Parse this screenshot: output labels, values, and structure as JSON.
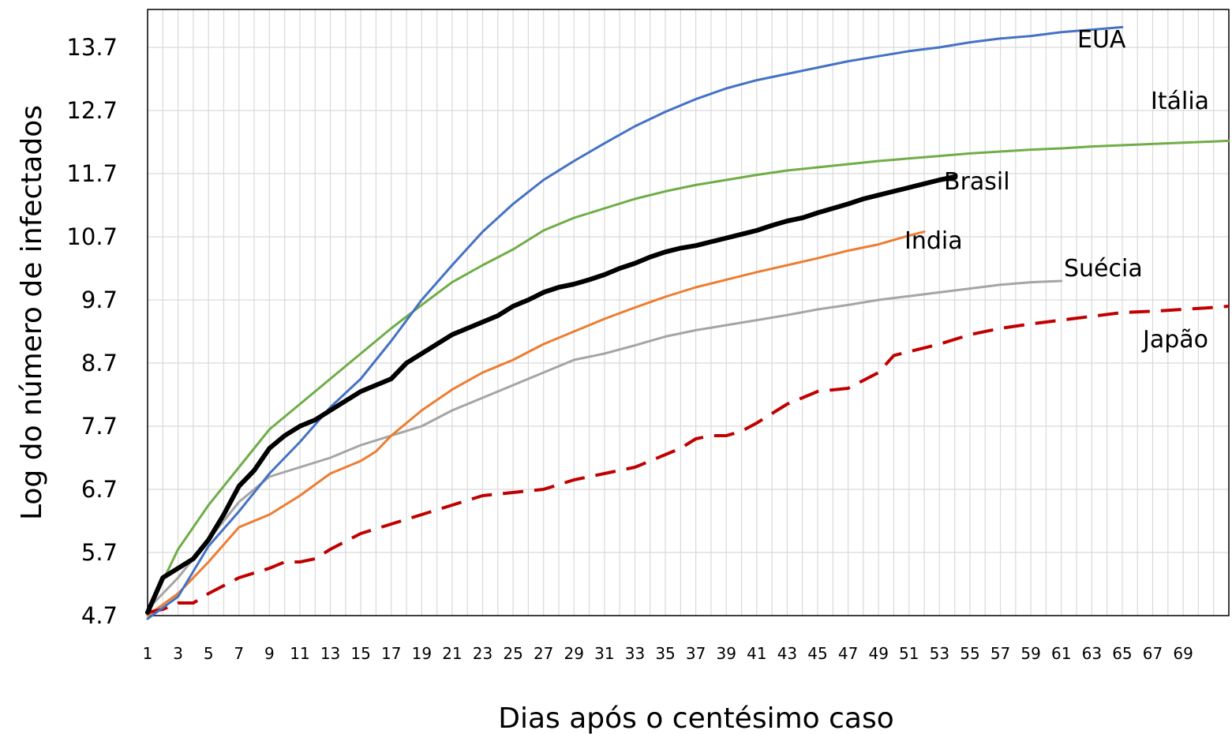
{
  "chart_data": {
    "type": "line",
    "title": "",
    "xlabel": "Dias após o centésimo caso",
    "ylabel": "Log do número de infectados",
    "xlim": [
      1,
      72
    ],
    "ylim": [
      4.7,
      14.3
    ],
    "y_ticks": [
      4.7,
      5.7,
      6.7,
      7.7,
      8.7,
      9.7,
      10.7,
      11.7,
      12.7,
      13.7
    ],
    "y_tick_labels": [
      "4.7",
      "5.7",
      "6.7",
      "7.7",
      "8.7",
      "9.7",
      "10.7",
      "11.7",
      "12.7",
      "13.7"
    ],
    "x_tick_labels": [
      "1",
      "3",
      "5",
      "7",
      "9",
      "11",
      "13",
      "15",
      "17",
      "19",
      "21",
      "23",
      "25",
      "27",
      "29",
      "31",
      "33",
      "35",
      "37",
      "39",
      "41",
      "43",
      "45",
      "47",
      "49",
      "51",
      "53",
      "55",
      "57",
      "59",
      "61",
      "63",
      "65",
      "67",
      "69"
    ],
    "grid": true,
    "legend": "labels placed at the end of each line",
    "series": [
      {
        "name": "EUA",
        "color": "#4472C4",
        "dash": false,
        "width": 3,
        "x": [
          1,
          3,
          5,
          7,
          9,
          11,
          13,
          15,
          17,
          19,
          21,
          23,
          25,
          27,
          29,
          31,
          33,
          35,
          37,
          39,
          41,
          43,
          45,
          47,
          49,
          51,
          53,
          55,
          57,
          59,
          61,
          63,
          65
        ],
        "y": [
          4.65,
          5.0,
          5.8,
          6.35,
          6.95,
          7.45,
          8.0,
          8.45,
          9.05,
          9.7,
          10.25,
          10.78,
          11.22,
          11.6,
          11.9,
          12.18,
          12.45,
          12.68,
          12.88,
          13.05,
          13.18,
          13.28,
          13.38,
          13.48,
          13.56,
          13.64,
          13.7,
          13.78,
          13.84,
          13.88,
          13.94,
          13.98,
          14.02
        ]
      },
      {
        "name": "Itália",
        "color": "#70AD47",
        "dash": false,
        "width": 3,
        "x": [
          1,
          3,
          5,
          7,
          9,
          11,
          13,
          15,
          17,
          19,
          21,
          23,
          25,
          27,
          29,
          31,
          33,
          35,
          37,
          39,
          41,
          43,
          45,
          47,
          49,
          51,
          53,
          55,
          57,
          59,
          61,
          63,
          65,
          67,
          69,
          71,
          72
        ],
        "y": [
          4.75,
          5.75,
          6.45,
          7.05,
          7.65,
          8.05,
          8.45,
          8.85,
          9.25,
          9.62,
          9.98,
          10.25,
          10.5,
          10.8,
          11.0,
          11.15,
          11.3,
          11.42,
          11.52,
          11.6,
          11.68,
          11.75,
          11.8,
          11.85,
          11.9,
          11.94,
          11.98,
          12.02,
          12.05,
          12.08,
          12.1,
          12.13,
          12.15,
          12.17,
          12.19,
          12.21,
          12.22
        ]
      },
      {
        "name": "Brasil",
        "color": "#000000",
        "dash": false,
        "width": 6,
        "x": [
          1,
          2,
          3,
          4,
          5,
          6,
          7,
          8,
          9,
          10,
          11,
          12,
          13,
          14,
          15,
          16,
          17,
          18,
          19,
          20,
          21,
          22,
          23,
          24,
          25,
          26,
          27,
          28,
          29,
          30,
          31,
          32,
          33,
          34,
          35,
          36,
          37,
          38,
          39,
          40,
          41,
          42,
          43,
          44,
          45,
          46,
          47,
          48,
          49,
          50,
          51,
          52,
          53,
          54
        ],
        "y": [
          4.75,
          5.3,
          5.45,
          5.6,
          5.9,
          6.3,
          6.75,
          7.0,
          7.35,
          7.55,
          7.7,
          7.8,
          7.95,
          8.1,
          8.25,
          8.35,
          8.45,
          8.7,
          8.85,
          9.0,
          9.15,
          9.25,
          9.35,
          9.45,
          9.6,
          9.7,
          9.82,
          9.9,
          9.95,
          10.02,
          10.1,
          10.2,
          10.28,
          10.38,
          10.46,
          10.52,
          10.56,
          10.62,
          10.68,
          10.74,
          10.8,
          10.88,
          10.95,
          11.0,
          11.08,
          11.15,
          11.22,
          11.3,
          11.36,
          11.42,
          11.48,
          11.54,
          11.6,
          11.65
        ]
      },
      {
        "name": "India",
        "color": "#ED7D31",
        "dash": false,
        "width": 3,
        "x": [
          1,
          3,
          5,
          7,
          9,
          11,
          13,
          15,
          16,
          17,
          19,
          21,
          23,
          25,
          27,
          29,
          31,
          33,
          35,
          37,
          39,
          41,
          43,
          45,
          47,
          49,
          51,
          52
        ],
        "y": [
          4.7,
          5.05,
          5.55,
          6.1,
          6.3,
          6.6,
          6.95,
          7.15,
          7.3,
          7.55,
          7.95,
          8.28,
          8.55,
          8.75,
          9.0,
          9.2,
          9.4,
          9.58,
          9.75,
          9.9,
          10.02,
          10.14,
          10.25,
          10.36,
          10.48,
          10.58,
          10.72,
          10.78
        ]
      },
      {
        "name": "Suécia",
        "color": "#A5A5A5",
        "dash": false,
        "width": 3,
        "x": [
          1,
          3,
          5,
          7,
          9,
          11,
          13,
          15,
          17,
          19,
          21,
          23,
          25,
          27,
          29,
          31,
          33,
          35,
          37,
          39,
          41,
          43,
          45,
          47,
          49,
          51,
          53,
          55,
          57,
          59,
          61
        ],
        "y": [
          4.8,
          5.3,
          5.9,
          6.5,
          6.9,
          7.05,
          7.2,
          7.4,
          7.55,
          7.7,
          7.95,
          8.15,
          8.35,
          8.55,
          8.75,
          8.85,
          8.98,
          9.12,
          9.22,
          9.3,
          9.38,
          9.46,
          9.55,
          9.62,
          9.7,
          9.76,
          9.82,
          9.88,
          9.94,
          9.98,
          10.0
        ]
      },
      {
        "name": "Japão",
        "color": "#C00000",
        "dash": true,
        "width": 4,
        "x": [
          1,
          2,
          3,
          4,
          5,
          7,
          9,
          10,
          11,
          12,
          13,
          15,
          17,
          19,
          21,
          23,
          25,
          27,
          29,
          31,
          33,
          35,
          36,
          37,
          38,
          39,
          40,
          41,
          43,
          45,
          47,
          49,
          50,
          51,
          53,
          55,
          57,
          59,
          61,
          63,
          65,
          67,
          69,
          71,
          72
        ],
        "y": [
          4.75,
          4.8,
          4.9,
          4.9,
          5.05,
          5.3,
          5.45,
          5.55,
          5.55,
          5.6,
          5.75,
          6.0,
          6.15,
          6.3,
          6.45,
          6.6,
          6.65,
          6.7,
          6.85,
          6.95,
          7.05,
          7.25,
          7.35,
          7.5,
          7.55,
          7.55,
          7.62,
          7.75,
          8.05,
          8.25,
          8.3,
          8.55,
          8.82,
          8.88,
          9.0,
          9.15,
          9.25,
          9.32,
          9.38,
          9.44,
          9.5,
          9.52,
          9.55,
          9.58,
          9.6
        ]
      }
    ],
    "annotations": [
      {
        "text": "EUA",
        "series": "EUA"
      },
      {
        "text": "Itália",
        "series": "Itália"
      },
      {
        "text": "Brasil",
        "series": "Brasil"
      },
      {
        "text": "India",
        "series": "India"
      },
      {
        "text": "Suécia",
        "series": "Suécia"
      },
      {
        "text": "Japão",
        "series": "Japão"
      }
    ]
  }
}
